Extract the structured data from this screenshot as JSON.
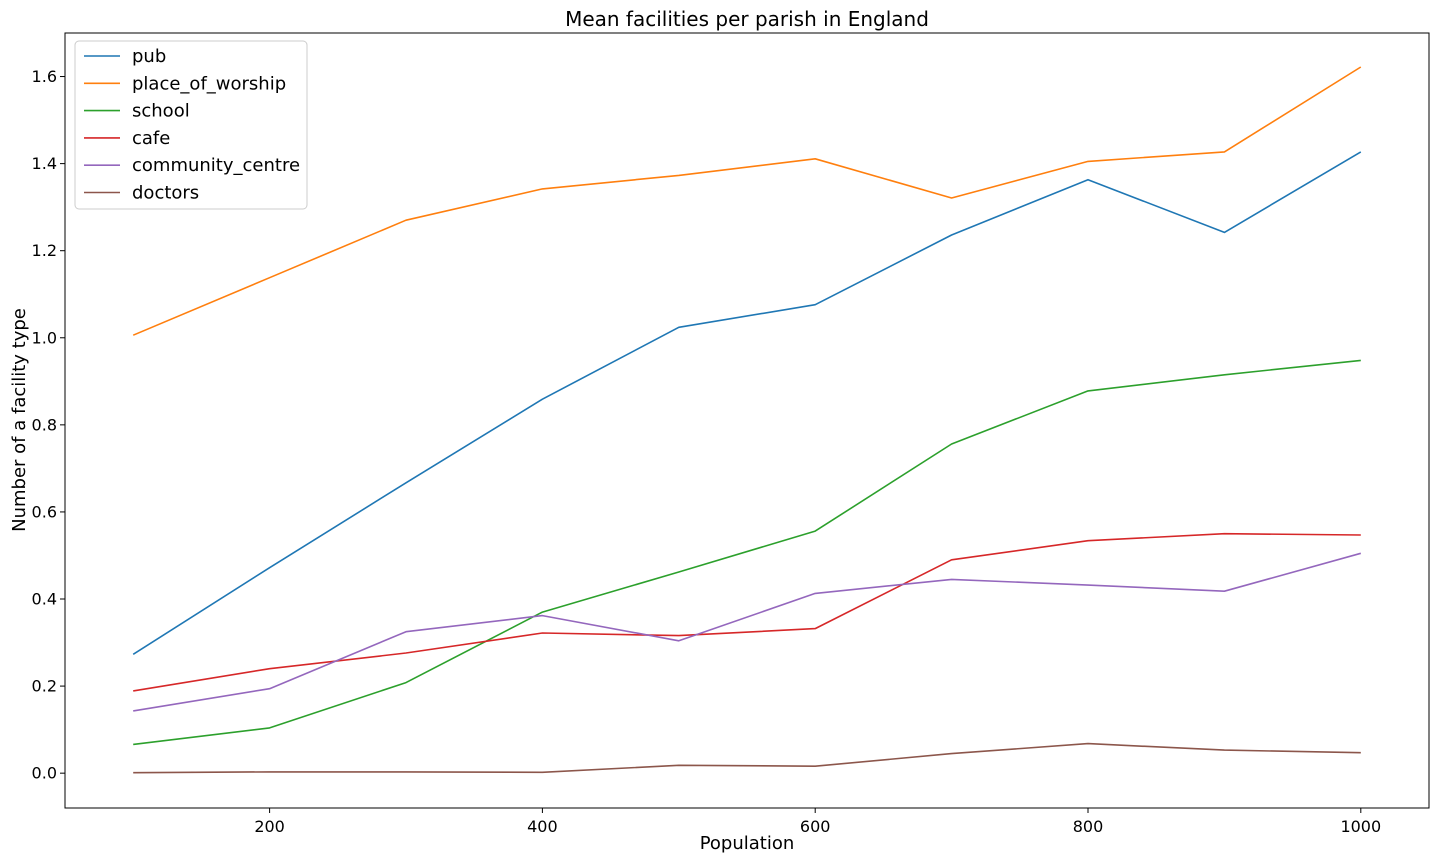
{
  "chart_data": {
    "type": "line",
    "title": "Mean facilities per parish in England",
    "xlabel": "Population",
    "ylabel": "Number of a facility type",
    "x": [
      100,
      200,
      300,
      400,
      500,
      600,
      700,
      800,
      900,
      1000
    ],
    "xlim": [
      50,
      1050
    ],
    "ylim": [
      -0.08,
      1.7
    ],
    "xticks": [
      200,
      400,
      600,
      800,
      1000
    ],
    "yticks": [
      0.0,
      0.2,
      0.4,
      0.6,
      0.8,
      1.0,
      1.2,
      1.4,
      1.6
    ],
    "ytick_labels": [
      "0.0",
      "0.2",
      "0.4",
      "0.6",
      "0.8",
      "1.0",
      "1.2",
      "1.4",
      "1.6"
    ],
    "grid": false,
    "legend_position": "top-left",
    "series": [
      {
        "name": "pub",
        "color": "#1f77b4",
        "values": [
          0.273,
          0.472,
          0.667,
          0.859,
          1.024,
          1.076,
          1.236,
          1.363,
          1.242,
          1.427
        ]
      },
      {
        "name": "place_of_worship",
        "color": "#ff7f0e",
        "values": [
          1.006,
          1.138,
          1.27,
          1.342,
          1.373,
          1.411,
          1.321,
          1.405,
          1.427,
          1.622
        ]
      },
      {
        "name": "school",
        "color": "#2ca02c",
        "values": [
          0.066,
          0.104,
          0.208,
          0.37,
          0.462,
          0.556,
          0.756,
          0.878,
          0.915,
          0.948
        ]
      },
      {
        "name": "cafe",
        "color": "#d62728",
        "values": [
          0.189,
          0.24,
          0.276,
          0.322,
          0.316,
          0.332,
          0.49,
          0.534,
          0.55,
          0.547
        ]
      },
      {
        "name": "community_centre",
        "color": "#9467bd",
        "values": [
          0.143,
          0.194,
          0.325,
          0.362,
          0.304,
          0.413,
          0.445,
          0.432,
          0.418,
          0.505
        ]
      },
      {
        "name": "doctors",
        "color": "#8c564b",
        "values": [
          0.001,
          0.003,
          0.003,
          0.002,
          0.018,
          0.016,
          0.045,
          0.068,
          0.053,
          0.047
        ]
      }
    ]
  }
}
